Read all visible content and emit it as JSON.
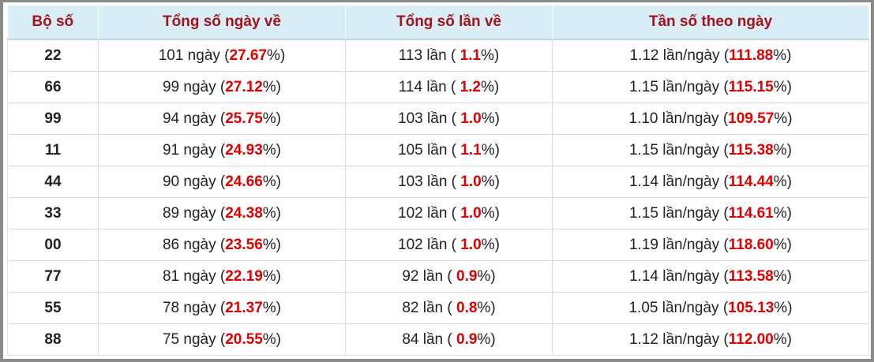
{
  "table": {
    "header": [
      "Bộ số",
      "Tổng số ngày về",
      "Tổng số lần về",
      "Tần số theo ngày"
    ],
    "rows": [
      [
        "22",
        [
          "101 ngày (",
          "27.67",
          "%)"
        ],
        [
          "113 lần ( ",
          "1.1",
          "%)"
        ],
        [
          "1.12 lần/ngày (",
          "111.88",
          "%)"
        ]
      ],
      [
        "66",
        [
          "99 ngày (",
          "27.12",
          "%)"
        ],
        [
          "114 lần ( ",
          "1.2",
          "%)"
        ],
        [
          "1.15 lần/ngày (",
          "115.15",
          "%)"
        ]
      ],
      [
        "99",
        [
          "94 ngày (",
          "25.75",
          "%)"
        ],
        [
          "103 lần ( ",
          "1.0",
          "%)"
        ],
        [
          "1.10 lần/ngày (",
          "109.57",
          "%)"
        ]
      ],
      [
        "11",
        [
          "91 ngày (",
          "24.93",
          "%)"
        ],
        [
          "105 lần ( ",
          "1.1",
          "%)"
        ],
        [
          "1.15 lần/ngày (",
          "115.38",
          "%)"
        ]
      ],
      [
        "44",
        [
          "90 ngày (",
          "24.66",
          "%)"
        ],
        [
          "103 lần ( ",
          "1.0",
          "%)"
        ],
        [
          "1.14 lần/ngày (",
          "114.44",
          "%)"
        ]
      ],
      [
        "33",
        [
          "89 ngày (",
          "24.38",
          "%)"
        ],
        [
          "102 lần ( ",
          "1.0",
          "%)"
        ],
        [
          "1.15 lần/ngày (",
          "114.61",
          "%)"
        ]
      ],
      [
        "00",
        [
          "86 ngày (",
          "23.56",
          "%)"
        ],
        [
          "102 lần ( ",
          "1.0",
          "%)"
        ],
        [
          "1.19 lần/ngày (",
          "118.60",
          "%)"
        ]
      ],
      [
        "77",
        [
          "81 ngày (",
          "22.19",
          "%)"
        ],
        [
          "92 lần ( ",
          "0.9",
          "%)"
        ],
        [
          "1.14 lần/ngày (",
          "113.58",
          "%)"
        ]
      ],
      [
        "55",
        [
          "78 ngày (",
          "21.37",
          "%)"
        ],
        [
          "82 lần ( ",
          "0.8",
          "%)"
        ],
        [
          "1.05 lần/ngày (",
          "105.13",
          "%)"
        ]
      ],
      [
        "88",
        [
          "75 ngày (",
          "20.55",
          "%)"
        ],
        [
          "84 lần ( ",
          "0.9",
          "%)"
        ],
        [
          "1.12 lần/ngày (",
          "112.00",
          "%)"
        ]
      ]
    ]
  }
}
